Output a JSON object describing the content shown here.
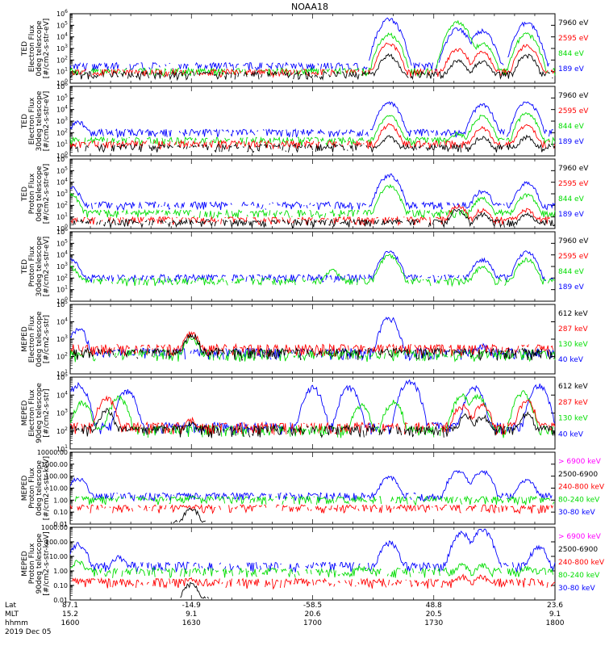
{
  "title": "NOAA18",
  "date_label": "2019 Dec 05",
  "footer": {
    "row_labels": [
      "Lat",
      "MLT",
      "hhmm"
    ],
    "columns": [
      {
        "lat": "87.1",
        "mlt": "15.2",
        "time": "1600"
      },
      {
        "lat": "-14.9",
        "mlt": "9.1",
        "time": "1630"
      },
      {
        "lat": "-58.5",
        "mlt": "20.6",
        "time": "1700"
      },
      {
        "lat": "48.8",
        "mlt": "20.5",
        "time": "1730"
      },
      {
        "lat": "23.6",
        "mlt": "9.1",
        "time": "1800"
      }
    ]
  },
  "colors": {
    "black": "#000000",
    "red": "#ff0000",
    "green": "#00dd00",
    "blue": "#0000ff",
    "magenta": "#ff00ff"
  },
  "chart_data": [
    {
      "type": "line",
      "ylabel": [
        "TED",
        "Electron Flux",
        "0deg telescope",
        "[#/cm2-s-str-eV]"
      ],
      "yscale": "log",
      "ylim": [
        1,
        1000000
      ],
      "ytick_labels": [
        "10^0",
        "10^1",
        "10^2",
        "10^3",
        "10^4",
        "10^5",
        "10^6"
      ],
      "legend": [
        {
          "label": "7960 eV",
          "color": "black"
        },
        {
          "label": "2595 eV",
          "color": "red"
        },
        {
          "label": "844 eV",
          "color": "green"
        },
        {
          "label": "189 eV",
          "color": "blue"
        }
      ],
      "series": [
        {
          "color": "blue",
          "peaks": [
            [
              1679,
              400000
            ],
            [
              1696,
              60000
            ],
            [
              1742,
              40000
            ],
            [
              1753,
              200000
            ]
          ],
          "base": 30
        },
        {
          "color": "green",
          "peaks": [
            [
              1679,
              20000
            ],
            [
              1696,
              200000
            ],
            [
              1742,
              3000
            ],
            [
              1753,
              20000
            ]
          ],
          "base": 10
        },
        {
          "color": "red",
          "peaks": [
            [
              1679,
              3000
            ],
            [
              1696,
              1000
            ],
            [
              1742,
              500
            ],
            [
              1753,
              2000
            ]
          ],
          "base": 8
        },
        {
          "color": "black",
          "peaks": [
            [
              1679,
              300
            ],
            [
              1696,
              100
            ],
            [
              1742,
              100
            ],
            [
              1753,
              300
            ]
          ],
          "base": 5
        }
      ]
    },
    {
      "type": "line",
      "ylabel": [
        "TED",
        "Electron Flux",
        "30deg telescope",
        "[#/cm2-s-str-eV]"
      ],
      "yscale": "log",
      "ylim": [
        1,
        1000000
      ],
      "ytick_labels": [
        "10^0",
        "10^1",
        "10^2",
        "10^3",
        "10^4",
        "10^5",
        "10^6"
      ],
      "legend": [
        {
          "label": "7960 eV",
          "color": "black"
        },
        {
          "label": "2595 eV",
          "color": "red"
        },
        {
          "label": "844 eV",
          "color": "green"
        },
        {
          "label": "189 eV",
          "color": "blue"
        }
      ],
      "series": [
        {
          "color": "blue",
          "peaks": [
            [
              1602,
              1000
            ],
            [
              1679,
              50000
            ],
            [
              1742,
              30000
            ],
            [
              1753,
              50000
            ]
          ],
          "base": 100
        },
        {
          "color": "green",
          "peaks": [
            [
              1679,
              3000
            ],
            [
              1696,
              100
            ],
            [
              1742,
              3000
            ],
            [
              1753,
              5000
            ]
          ],
          "base": 20
        },
        {
          "color": "red",
          "peaks": [
            [
              1679,
              500
            ],
            [
              1742,
              300
            ],
            [
              1753,
              500
            ]
          ],
          "base": 10
        },
        {
          "color": "black",
          "peaks": [
            [
              1679,
              50
            ],
            [
              1742,
              50
            ],
            [
              1753,
              50
            ]
          ],
          "base": 5
        }
      ]
    },
    {
      "type": "line",
      "ylabel": [
        "TED",
        "Proton Flux",
        "0deg telescope",
        "[#/cm2-s-str-eV]"
      ],
      "yscale": "log",
      "ylim": [
        1,
        1000000
      ],
      "ytick_labels": [
        "10^0",
        "10^1",
        "10^2",
        "10^3",
        "10^4",
        "10^5",
        "10^6"
      ],
      "legend": [
        {
          "label": "7960 eV",
          "color": "black"
        },
        {
          "label": "2595 eV",
          "color": "red"
        },
        {
          "label": "844 eV",
          "color": "green"
        },
        {
          "label": "189 eV",
          "color": "blue"
        }
      ],
      "series": [
        {
          "color": "blue",
          "peaks": [
            [
              1600,
              5000
            ],
            [
              1679,
              50000
            ],
            [
              1742,
              2000
            ],
            [
              1753,
              10000
            ]
          ],
          "base": 100
        },
        {
          "color": "green",
          "peaks": [
            [
              1600,
              1000
            ],
            [
              1679,
              5000
            ],
            [
              1742,
              500
            ],
            [
              1753,
              1000
            ]
          ],
          "base": 20
        },
        {
          "color": "red",
          "peaks": [
            [
              1696,
              100
            ],
            [
              1742,
              50
            ],
            [
              1753,
              50
            ]
          ],
          "base": 5
        },
        {
          "color": "black",
          "peaks": [
            [
              1696,
              50
            ],
            [
              1742,
              20
            ],
            [
              1753,
              20
            ]
          ],
          "base": 3
        }
      ]
    },
    {
      "type": "line",
      "ylabel": [
        "TED",
        "Proton Flux",
        "30deg telescope",
        "[#/cm2-s-str-eV]"
      ],
      "yscale": "log",
      "ylim": [
        1,
        1000000
      ],
      "ytick_labels": [
        "10^0",
        "10^1",
        "10^2",
        "10^3",
        "10^4",
        "10^5",
        "10^6"
      ],
      "legend": [
        {
          "label": "7960 eV",
          "color": "black"
        },
        {
          "label": "2595 eV",
          "color": "red"
        },
        {
          "label": "844 eV",
          "color": "green"
        },
        {
          "label": "189 eV",
          "color": "blue"
        }
      ],
      "series": [
        {
          "color": "blue",
          "peaks": [
            [
              1600,
              5000
            ],
            [
              1679,
              20000
            ],
            [
              1742,
              5000
            ],
            [
              1753,
              20000
            ]
          ],
          "base": 100
        },
        {
          "color": "green",
          "peaks": [
            [
              1600,
              1000
            ],
            [
              1665,
              500
            ],
            [
              1679,
              10000
            ],
            [
              1742,
              1000
            ],
            [
              1753,
              5000
            ]
          ],
          "base": 50
        },
        {
          "color": "red",
          "peaks": [],
          "base": 0
        },
        {
          "color": "black",
          "peaks": [],
          "base": 0
        }
      ]
    },
    {
      "type": "line",
      "ylabel": [
        "MEPED",
        "Electron Flux",
        "0deg telescope",
        "[#/cm2-s-str]"
      ],
      "yscale": "log",
      "ylim": [
        10,
        100000
      ],
      "ytick_labels": [
        "10^1",
        "10^2",
        "10^3",
        "10^4",
        "10^5"
      ],
      "legend": [
        {
          "label": "612 keV",
          "color": "black"
        },
        {
          "label": "287 keV",
          "color": "red"
        },
        {
          "label": "130 keV",
          "color": "green"
        },
        {
          "label": "40 keV",
          "color": "blue"
        }
      ],
      "series": [
        {
          "color": "blue",
          "peaks": [
            [
              1602,
              5000
            ],
            [
              1679,
              20000
            ],
            [
              1742,
              500
            ]
          ],
          "base": 150
        },
        {
          "color": "green",
          "peaks": [
            [
              1630,
              1500
            ]
          ],
          "base": 120
        },
        {
          "color": "red",
          "peaks": [
            [
              1630,
              2500
            ]
          ],
          "base": 250
        },
        {
          "color": "black",
          "peaks": [
            [
              1630,
              2000
            ]
          ],
          "base": 150
        }
      ]
    },
    {
      "type": "line",
      "ylabel": [
        "MEPED",
        "Electron Flux",
        "90deg telescope",
        "[#/cm2-s-str]"
      ],
      "yscale": "log",
      "ylim": [
        10,
        100000
      ],
      "ytick_labels": [
        "10^1",
        "10^2",
        "10^3",
        "10^4",
        "10^5"
      ],
      "legend": [
        {
          "label": "612 keV",
          "color": "black"
        },
        {
          "label": "287 keV",
          "color": "red"
        },
        {
          "label": "130 keV",
          "color": "green"
        },
        {
          "label": "40 keV",
          "color": "blue"
        }
      ],
      "series": [
        {
          "color": "blue",
          "peaks": [
            [
              1602,
              50000
            ],
            [
              1614,
              20000
            ],
            [
              1669,
              30000
            ],
            [
              1684,
              80000
            ],
            [
              1700,
              30000
            ],
            [
              1740,
              30000
            ],
            [
              1756,
              40000
            ]
          ],
          "base": 150
        },
        {
          "color": "green",
          "peaks": [
            [
              1603,
              5000
            ],
            [
              1612,
              8000
            ],
            [
              1672,
              3000
            ],
            [
              1680,
              5000
            ],
            [
              1697,
              10000
            ],
            [
              1741,
              10000
            ],
            [
              1752,
              15000
            ]
          ],
          "base": 100
        },
        {
          "color": "red",
          "peaks": [
            [
              1609,
              8000
            ],
            [
              1630,
              500
            ],
            [
              1697,
              3000
            ],
            [
              1742,
              3000
            ],
            [
              1753,
              5000
            ]
          ],
          "base": 150
        },
        {
          "color": "black",
          "peaks": [
            [
              1609,
              1500
            ],
            [
              1630,
              300
            ],
            [
              1698,
              800
            ],
            [
              1742,
              800
            ],
            [
              1753,
              1000
            ]
          ],
          "base": 100
        }
      ]
    },
    {
      "type": "line",
      "ylabel": [
        "MEPED",
        "Proton Flux",
        "0deg telescope",
        "[#/cm2-s-str-keV]"
      ],
      "yscale": "log",
      "ylim": [
        0.01,
        10000
      ],
      "ytick_labels": [
        "0.01",
        "0.10",
        "1.00",
        "10.00",
        "100.00",
        "1000.00",
        "10000.00"
      ],
      "legend": [
        {
          "label": "> 6900 keV",
          "color": "magenta"
        },
        {
          "label": "2500-6900",
          "color": "black"
        },
        {
          "label": "240-800 keV",
          "color": "red"
        },
        {
          "label": "80-240 keV",
          "color": "green"
        },
        {
          "label": "30-80 keV",
          "color": "blue"
        }
      ],
      "series": [
        {
          "color": "blue",
          "peaks": [
            [
              1602,
              80
            ],
            [
              1679,
              100
            ],
            [
              1696,
              300
            ],
            [
              1742,
              300
            ],
            [
              1753,
              50
            ]
          ],
          "base": 2
        },
        {
          "color": "green",
          "peaks": [
            [
              1630,
              2
            ]
          ],
          "base": 1
        },
        {
          "color": "red",
          "peaks": [
            [
              1630,
              0.3
            ]
          ],
          "base": 0.2
        },
        {
          "color": "black",
          "peaks": [
            [
              1630,
              0.2
            ]
          ],
          "base": 0
        },
        {
          "color": "magenta",
          "peaks": [],
          "base": 0
        }
      ]
    },
    {
      "type": "line",
      "ylabel": [
        "MEPED",
        "Proton Flux",
        "90deg telescope",
        "[#/cm2-s-str-keV]"
      ],
      "yscale": "log",
      "ylim": [
        0.01,
        1000
      ],
      "ytick_labels": [
        "0.01",
        "0.10",
        "1.00",
        "10.00",
        "100.00",
        "1000.00"
      ],
      "legend": [
        {
          "label": "> 6900 keV",
          "color": "magenta"
        },
        {
          "label": "2500-6900",
          "color": "black"
        },
        {
          "label": "240-800 keV",
          "color": "red"
        },
        {
          "label": "80-240 keV",
          "color": "green"
        },
        {
          "label": "30-80 keV",
          "color": "blue"
        }
      ],
      "series": [
        {
          "color": "blue",
          "peaks": [
            [
              1602,
              80
            ],
            [
              1612,
              10
            ],
            [
              1679,
              100
            ],
            [
              1697,
              500
            ],
            [
              1742,
              800
            ],
            [
              1756,
              50
            ]
          ],
          "base": 2
        },
        {
          "color": "green",
          "peaks": [
            [
              1602,
              5
            ],
            [
              1672,
              2
            ],
            [
              1697,
              3
            ],
            [
              1742,
              3
            ],
            [
              1753,
              2
            ]
          ],
          "base": 0.8
        },
        {
          "color": "red",
          "peaks": [
            [
              1630,
              0.3
            ],
            [
              1697,
              0.5
            ],
            [
              1742,
              0.5
            ]
          ],
          "base": 0.15
        },
        {
          "color": "black",
          "peaks": [
            [
              1630,
              0.15
            ]
          ],
          "base": 0
        },
        {
          "color": "magenta",
          "peaks": [],
          "base": 0
        }
      ]
    }
  ]
}
